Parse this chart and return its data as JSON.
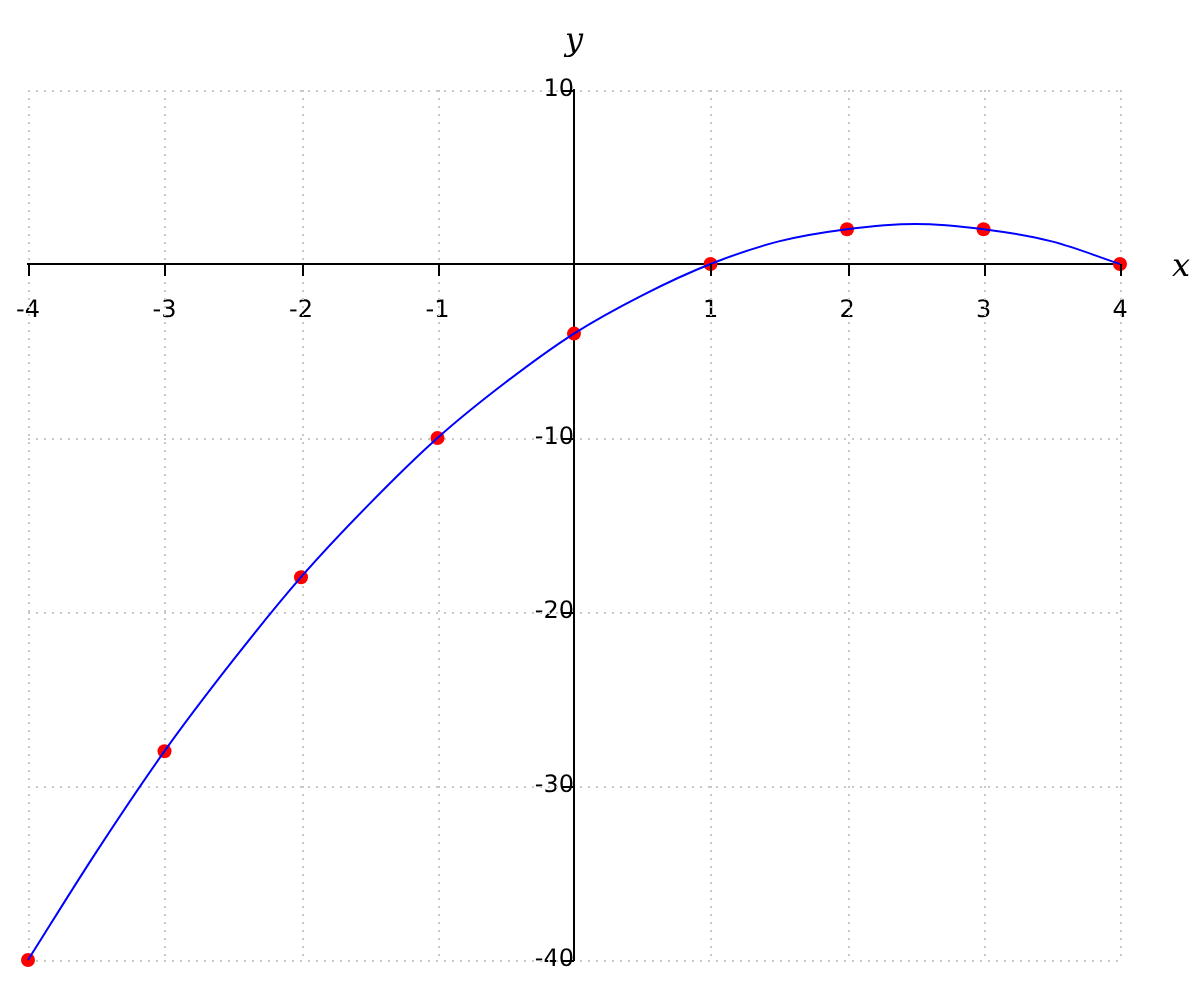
{
  "chart_data": {
    "type": "scatter",
    "xlabel": "x",
    "ylabel": "y",
    "xlim": [
      -4,
      4
    ],
    "ylim": [
      -40,
      10
    ],
    "xticks": [
      -4,
      -3,
      -2,
      -1,
      1,
      2,
      3,
      4
    ],
    "yticks": [
      -40,
      -30,
      -20,
      -10,
      10
    ],
    "grid": true,
    "legend": false,
    "series": [
      {
        "type": "line",
        "color": "#0000ff",
        "marker": "none",
        "x": [
          -4,
          -3.5,
          -3,
          -2.5,
          -2,
          -1.5,
          -1,
          -0.5,
          0,
          0.5,
          1,
          1.5,
          2,
          2.5,
          3,
          3.5,
          4
        ],
        "values": [
          -40,
          -33.8,
          -28,
          -22.8,
          -18,
          -13.8,
          -10,
          -6.8,
          -4,
          -1.8,
          0,
          1.3,
          2,
          2.3,
          2,
          1.3,
          0
        ]
      },
      {
        "color": "#ff0000",
        "marker": "circle",
        "x": [
          -4,
          -3,
          -2,
          -1,
          0,
          1,
          2,
          3,
          4
        ],
        "values": [
          -40,
          -28,
          -18,
          -10,
          -4,
          0,
          2,
          2,
          0
        ]
      }
    ]
  }
}
